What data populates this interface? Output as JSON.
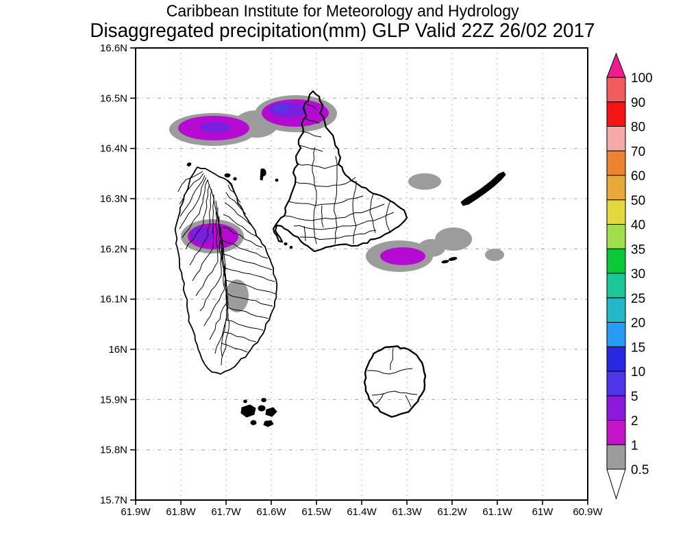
{
  "title": {
    "line1": "Caribbean Institute for Meteorology and Hydrology",
    "line2": "Disaggregated precipitation(mm) GLP Valid 22Z 26/02 2017"
  },
  "axes": {
    "lat_ticks": [
      "16.6N",
      "16.5N",
      "16.4N",
      "16.3N",
      "16.2N",
      "16.1N",
      "16N",
      "15.9N",
      "15.8N",
      "15.7N"
    ],
    "lon_ticks": [
      "61.9W",
      "61.8W",
      "61.7W",
      "61.6W",
      "61.5W",
      "61.4W",
      "61.3W",
      "61.2W",
      "61.1W",
      "61W",
      "60.9W"
    ]
  },
  "legend": {
    "labels": [
      "100",
      "90",
      "80",
      "70",
      "60",
      "50",
      "40",
      "35",
      "30",
      "25",
      "20",
      "15",
      "10",
      "5",
      "2",
      "1",
      "0.5"
    ],
    "colors": [
      "#F25C5C",
      "#F51414",
      "#F7A8A8",
      "#EE8231",
      "#E8A93A",
      "#E5D83F",
      "#A2DE4B",
      "#0AC837",
      "#19C896",
      "#23B8C8",
      "#289CF5",
      "#2828E0",
      "#4F35E8",
      "#8C19DC",
      "#C414C8",
      "#9C9C9C"
    ],
    "over_color": "#EE1C8E",
    "under_color": "#FFFFFF"
  },
  "map": {
    "units": "mm",
    "colors": {
      "shade_low": "#9C9C9C",
      "shade_mid": "#B40AD2",
      "shade_high": "#7A1EDF",
      "shade_peak": "#5A35E8"
    },
    "precip_regions": [
      {
        "name": "offshore-north-west",
        "approx_position": "61.75W 16.44N",
        "max_level_mm": "2-5"
      },
      {
        "name": "north-grande-terre",
        "approx_position": "61.50W 16.47N",
        "max_level_mm": "5-10"
      },
      {
        "name": "northwest-basse-terre",
        "approx_position": "61.77W 16.22N",
        "max_level_mm": "2-5"
      },
      {
        "name": "central-basse-terre",
        "approx_position": "61.70W 16.10N",
        "max_level_mm": "0.5-1"
      },
      {
        "name": "east-offshore",
        "approx_position": "61.30W 16.19N",
        "max_level_mm": "1-2"
      },
      {
        "name": "northeast-offshore",
        "approx_position": "61.21W 16.32N",
        "max_level_mm": "0.5-1"
      },
      {
        "name": "far-east-offshore",
        "approx_position": "61.10W 16.19N",
        "max_level_mm": "0.5-1"
      }
    ]
  }
}
